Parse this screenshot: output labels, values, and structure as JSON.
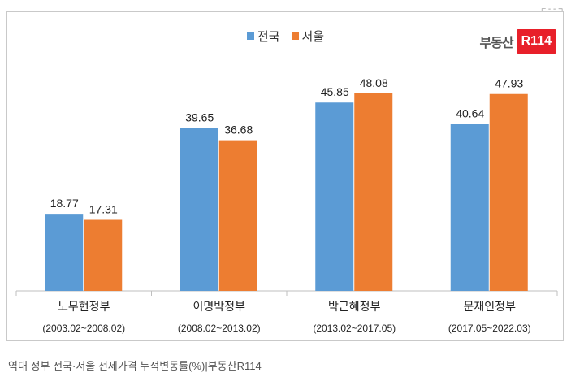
{
  "chart_data": {
    "type": "bar",
    "categories": [
      "노무현정부",
      "이명박정부",
      "박근혜정부",
      "문재인정부"
    ],
    "category_periods": [
      "(2003.02~2008.02)",
      "(2008.02~2013.02)",
      "(2013.02~2017.05)",
      "(2017.05~2022.03)"
    ],
    "series": [
      {
        "name": "전국",
        "color": "#5b9bd5",
        "values": [
          18.77,
          39.65,
          45.85,
          40.64
        ]
      },
      {
        "name": "서울",
        "color": "#ed7d31",
        "values": [
          17.31,
          36.68,
          48.08,
          47.93
        ]
      }
    ],
    "ylim": [
      0,
      55
    ],
    "grid": false,
    "legend_position": "top-center"
  },
  "logo": {
    "text": "부동산",
    "badge": "R114"
  },
  "caption": "역대 정부 전국·서울 전세가격 누적변동률(%)|부동산R114"
}
